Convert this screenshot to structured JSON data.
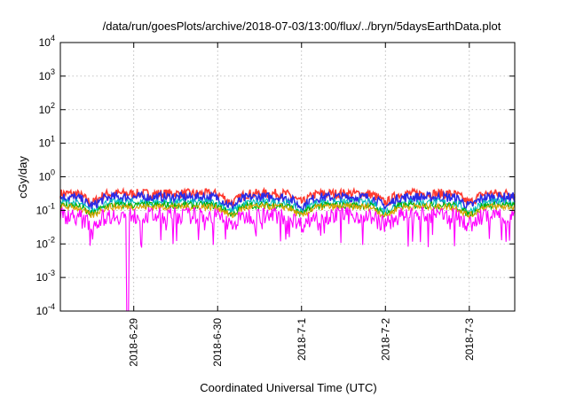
{
  "chart_data": {
    "type": "line",
    "title": "/data/run/goesPlots/archive/2018-07-03/13:00/flux/../bryn/5daysEarthData.plot",
    "xlabel": "Coordinated Universal Time (UTC)",
    "ylabel": "cGy/day",
    "y_scale": "log",
    "ylim": [
      0.0001,
      10000
    ],
    "x_range_days": [
      2018.0,
      0
    ],
    "xlim": [
      "2018-06-28T03:00",
      "2018-07-03T13:00"
    ],
    "grid": true,
    "y_ticks": [
      {
        "base": "10",
        "exp": "4",
        "value": 10000
      },
      {
        "base": "10",
        "exp": "3",
        "value": 1000
      },
      {
        "base": "10",
        "exp": "2",
        "value": 100
      },
      {
        "base": "10",
        "exp": "1",
        "value": 10
      },
      {
        "base": "10",
        "exp": "0",
        "value": 1
      },
      {
        "base": "10",
        "exp": "-1",
        "value": 0.1
      },
      {
        "base": "10",
        "exp": "-2",
        "value": 0.01
      },
      {
        "base": "10",
        "exp": "-3",
        "value": 0.001
      },
      {
        "base": "10",
        "exp": "-4",
        "value": 0.0001
      }
    ],
    "x_ticks": [
      {
        "label": "2018-6-29",
        "date": "2018-06-29T00:00"
      },
      {
        "label": "2018-6-30",
        "date": "2018-06-30T00:00"
      },
      {
        "label": "2018-7-1",
        "date": "2018-07-01T00:00"
      },
      {
        "label": "2018-7-2",
        "date": "2018-07-02T00:00"
      },
      {
        "label": "2018-7-3",
        "date": "2018-07-03T00:00"
      }
    ],
    "series": [
      {
        "color": "#ff3b30",
        "typical_range": [
          0.2,
          0.5
        ]
      },
      {
        "color": "#2a2ae6",
        "typical_range": [
          0.15,
          0.4
        ]
      },
      {
        "color": "#00c0c0",
        "typical_range": [
          0.12,
          0.25
        ]
      },
      {
        "color": "#00b000",
        "typical_range": [
          0.1,
          0.2
        ]
      },
      {
        "color": "#e0a000",
        "typical_range": [
          0.09,
          0.18
        ]
      },
      {
        "color": "#ff00ff",
        "typical_range": [
          0.03,
          0.16
        ],
        "dropout": {
          "date": "2018-06-28T22:10",
          "value": 0.0001
        }
      }
    ],
    "key_points": [
      {
        "date": "2018-06-28T03:00",
        "value": 0.3
      },
      {
        "date": "2018-06-29T18:00",
        "value": 0.5
      },
      {
        "date": "2018-06-30T04:00",
        "value": 0.02
      },
      {
        "date": "2018-07-01T00:00",
        "value": 0.07
      },
      {
        "date": "2018-07-02T00:00",
        "value": 0.04
      },
      {
        "date": "2018-07-03T13:00",
        "value": 0.4
      }
    ]
  }
}
